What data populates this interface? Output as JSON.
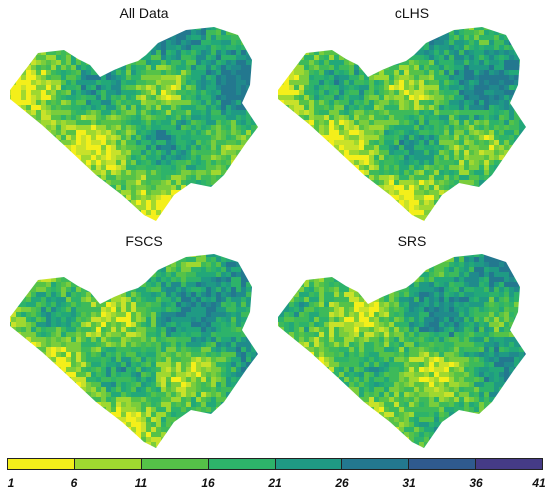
{
  "panels": [
    {
      "title": "All Data"
    },
    {
      "title": "cLHS"
    },
    {
      "title": "FSCS"
    },
    {
      "title": "SRS"
    }
  ],
  "legend": {
    "ticks": [
      "1",
      "6",
      "11",
      "16",
      "21",
      "26",
      "31",
      "36",
      "41"
    ],
    "colors": [
      "#f4ef1a",
      "#9fd830",
      "#55c248",
      "#2db36a",
      "#1f9a84",
      "#23788f",
      "#2f5a8e",
      "#453b86",
      "#480d55"
    ]
  }
}
